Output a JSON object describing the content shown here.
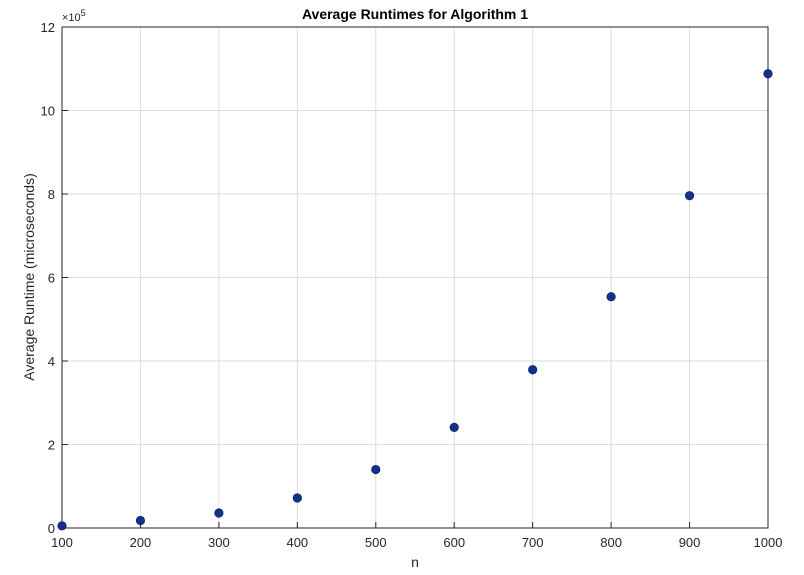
{
  "chart_data": {
    "type": "scatter",
    "title": "Average Runtimes for Algorithm 1",
    "xlabel": "n",
    "ylabel": "Average Runtime (microseconds)",
    "y_exponent_base": "×10",
    "y_exponent_power": "5",
    "xlim": [
      100,
      1000
    ],
    "ylim": [
      0,
      12
    ],
    "x_ticks": [
      100,
      200,
      300,
      400,
      500,
      600,
      700,
      800,
      900,
      1000
    ],
    "y_ticks": [
      0,
      2,
      4,
      6,
      8,
      10,
      12
    ],
    "grid": true,
    "legend": "none",
    "marker_color": "#13318a",
    "series": [
      {
        "x": [
          100,
          200,
          300,
          400,
          500,
          600,
          700,
          800,
          900,
          1000
        ],
        "y": [
          0.05,
          0.18,
          0.36,
          0.72,
          1.4,
          2.41,
          3.79,
          5.54,
          7.96,
          10.88
        ]
      }
    ]
  }
}
